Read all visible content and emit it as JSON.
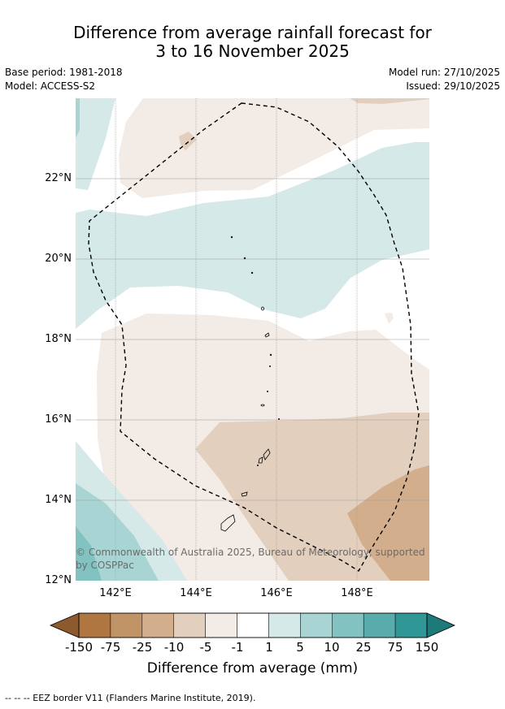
{
  "title": {
    "line1": "Difference from average rainfall forecast for",
    "line2": "3 to 16 November 2025"
  },
  "meta": {
    "base_period": "Base period: 1981-2018",
    "model": "Model: ACCESS-S2",
    "model_run": "Model run: 27/10/2025",
    "issued": "Issued: 29/10/2025"
  },
  "map": {
    "lat_labels": [
      "22°N",
      "20°N",
      "18°N",
      "16°N",
      "14°N",
      "12°N"
    ],
    "lon_labels": [
      "142°E",
      "144°E",
      "146°E",
      "148°E"
    ],
    "copyright": "© Commonwealth of Australia 2025, Bureau of Meteorology, supported by COSPPac"
  },
  "colorbar": {
    "ticks": [
      "-150",
      "-75",
      "-25",
      "-10",
      "-5",
      "-1",
      "1",
      "5",
      "10",
      "25",
      "75",
      "150"
    ],
    "colors": [
      "#8c5a2c",
      "#b07641",
      "#c19467",
      "#d2ae8c",
      "#e2cfbe",
      "#f3ebe5",
      "#ffffff",
      "#d5e9e8",
      "#a8d4d3",
      "#82c2c1",
      "#5aabab",
      "#2f9795",
      "#1d7a78"
    ],
    "label": "Difference from average (mm)"
  },
  "footer": "-- -- -- EEZ border V11 (Flanders Marine Institute, 2019)."
}
